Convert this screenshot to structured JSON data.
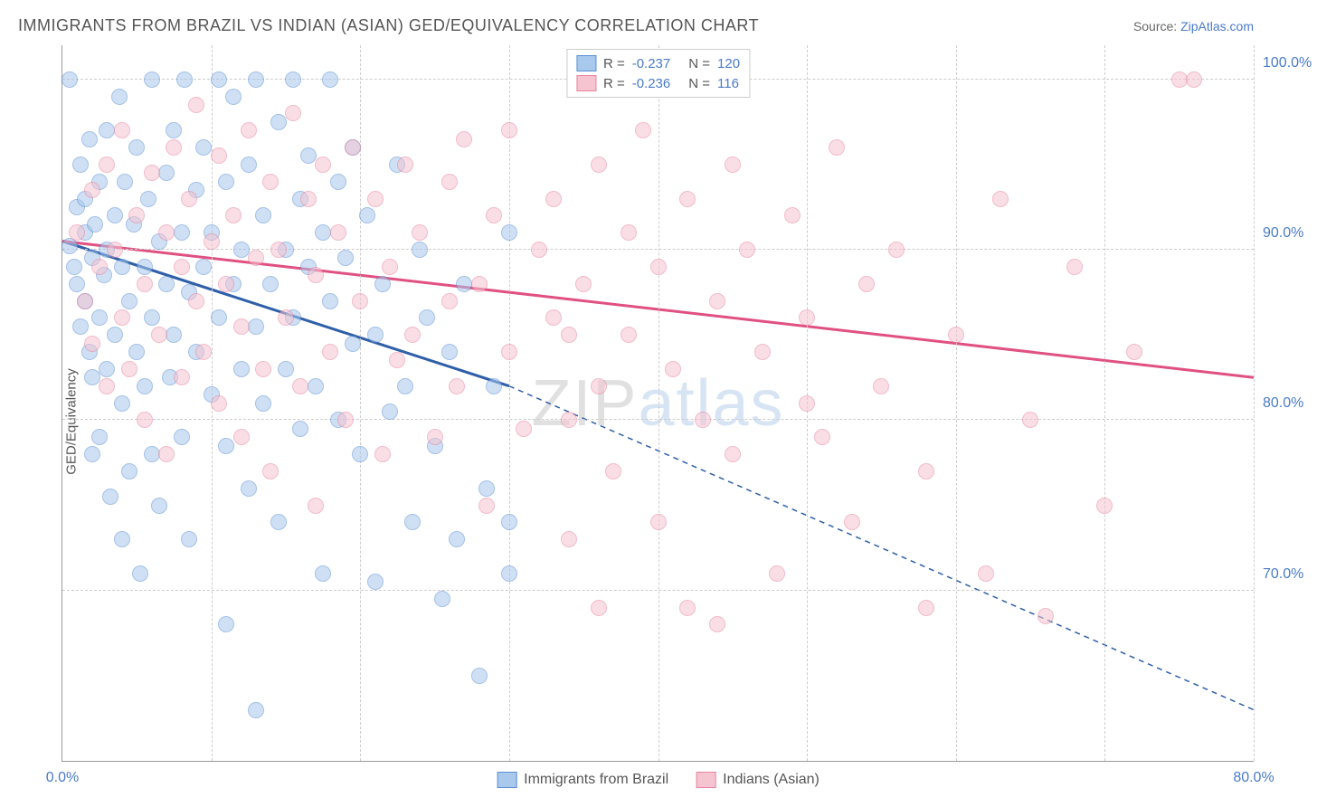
{
  "title": "IMMIGRANTS FROM BRAZIL VS INDIAN (ASIAN) GED/EQUIVALENCY CORRELATION CHART",
  "source_label": "Source:",
  "source_name": "ZipAtlas.com",
  "ylabel": "GED/Equivalency",
  "watermark_a": "ZIP",
  "watermark_b": "atlas",
  "chart": {
    "type": "scatter",
    "xlim": [
      0,
      80
    ],
    "ylim": [
      60,
      102
    ],
    "xticks": [
      0,
      10,
      20,
      30,
      40,
      50,
      60,
      70,
      80
    ],
    "xtick_labels": {
      "0": "0.0%",
      "80": "80.0%"
    },
    "yticks": [
      70,
      80,
      90,
      100
    ],
    "ytick_labels": {
      "70": "70.0%",
      "80": "80.0%",
      "90": "90.0%",
      "100": "100.0%"
    },
    "grid_color": "#cccccc",
    "background_color": "#ffffff",
    "point_radius": 9,
    "point_opacity": 0.55,
    "series": [
      {
        "name": "Immigrants from Brazil",
        "color_fill": "#a8c8ec",
        "color_stroke": "#5b8fd4",
        "line_color": "#2e5fa8",
        "R": "-0.237",
        "N": "120",
        "trend": {
          "x1": 0,
          "y1": 90.5,
          "x2_solid": 30,
          "y2_solid": 82,
          "x2_dash": 80,
          "y2_dash": 63
        },
        "points": [
          [
            0.5,
            90.2
          ],
          [
            0.5,
            100
          ],
          [
            0.8,
            89
          ],
          [
            1,
            92.5
          ],
          [
            1,
            88
          ],
          [
            1.2,
            95
          ],
          [
            1.2,
            85.5
          ],
          [
            1.5,
            93
          ],
          [
            1.5,
            87
          ],
          [
            1.5,
            91
          ],
          [
            1.8,
            84
          ],
          [
            1.8,
            96.5
          ],
          [
            2,
            89.5
          ],
          [
            2,
            78
          ],
          [
            2,
            82.5
          ],
          [
            2.2,
            91.5
          ],
          [
            2.5,
            94
          ],
          [
            2.5,
            86
          ],
          [
            2.5,
            79
          ],
          [
            2.8,
            88.5
          ],
          [
            3,
            97
          ],
          [
            3,
            83
          ],
          [
            3,
            90
          ],
          [
            3.2,
            75.5
          ],
          [
            3.5,
            92
          ],
          [
            3.5,
            85
          ],
          [
            3.8,
            99
          ],
          [
            4,
            81
          ],
          [
            4,
            89
          ],
          [
            4,
            73
          ],
          [
            4.2,
            94
          ],
          [
            4.5,
            87
          ],
          [
            4.5,
            77
          ],
          [
            4.8,
            91.5
          ],
          [
            5,
            84
          ],
          [
            5,
            96
          ],
          [
            5.2,
            71
          ],
          [
            5.5,
            89
          ],
          [
            5.5,
            82
          ],
          [
            5.8,
            93
          ],
          [
            6,
            86
          ],
          [
            6,
            100
          ],
          [
            6,
            78
          ],
          [
            6.5,
            90.5
          ],
          [
            6.5,
            75
          ],
          [
            7,
            88
          ],
          [
            7,
            94.5
          ],
          [
            7.2,
            82.5
          ],
          [
            7.5,
            97
          ],
          [
            7.5,
            85
          ],
          [
            8,
            91
          ],
          [
            8,
            79
          ],
          [
            8.2,
            100
          ],
          [
            8.5,
            87.5
          ],
          [
            8.5,
            73
          ],
          [
            9,
            93.5
          ],
          [
            9,
            84
          ],
          [
            9.5,
            89
          ],
          [
            9.5,
            96
          ],
          [
            10,
            81.5
          ],
          [
            10,
            91
          ],
          [
            10.5,
            100
          ],
          [
            10.5,
            86
          ],
          [
            11,
            78.5
          ],
          [
            11,
            94
          ],
          [
            11.5,
            88
          ],
          [
            11.5,
            99
          ],
          [
            12,
            83
          ],
          [
            12,
            90
          ],
          [
            12.5,
            76
          ],
          [
            12.5,
            95
          ],
          [
            13,
            100
          ],
          [
            13,
            85.5
          ],
          [
            13.5,
            92
          ],
          [
            13.5,
            81
          ],
          [
            14,
            88
          ],
          [
            14.5,
            97.5
          ],
          [
            14.5,
            74
          ],
          [
            15,
            90
          ],
          [
            15,
            83
          ],
          [
            15.5,
            100
          ],
          [
            15.5,
            86
          ],
          [
            16,
            93
          ],
          [
            16,
            79.5
          ],
          [
            16.5,
            89
          ],
          [
            16.5,
            95.5
          ],
          [
            17,
            82
          ],
          [
            17.5,
            91
          ],
          [
            17.5,
            71
          ],
          [
            18,
            100
          ],
          [
            18,
            87
          ],
          [
            18.5,
            94
          ],
          [
            18.5,
            80
          ],
          [
            19,
            89.5
          ],
          [
            19.5,
            96
          ],
          [
            19.5,
            84.5
          ],
          [
            20,
            78
          ],
          [
            20.5,
            92
          ],
          [
            21,
            70.5
          ],
          [
            21,
            85
          ],
          [
            21.5,
            88
          ],
          [
            22,
            80.5
          ],
          [
            22.5,
            95
          ],
          [
            23,
            82
          ],
          [
            23.5,
            74
          ],
          [
            24,
            90
          ],
          [
            24.5,
            86
          ],
          [
            25,
            78.5
          ],
          [
            25.5,
            69.5
          ],
          [
            26,
            84
          ],
          [
            26.5,
            73
          ],
          [
            27,
            88
          ],
          [
            28,
            65
          ],
          [
            28.5,
            76
          ],
          [
            29,
            82
          ],
          [
            30,
            74
          ],
          [
            30,
            71
          ],
          [
            30,
            91
          ],
          [
            13,
            63
          ],
          [
            11,
            68
          ]
        ]
      },
      {
        "name": "Indians (Asian)",
        "color_fill": "#f5c4d0",
        "color_stroke": "#e8859f",
        "line_color": "#e05080",
        "R": "-0.236",
        "N": "116",
        "trend": {
          "x1": 0,
          "y1": 90.5,
          "x2_solid": 80,
          "y2_solid": 82.5,
          "x2_dash": 80,
          "y2_dash": 82.5
        },
        "points": [
          [
            1,
            91
          ],
          [
            1.5,
            87
          ],
          [
            2,
            93.5
          ],
          [
            2,
            84.5
          ],
          [
            2.5,
            89
          ],
          [
            3,
            82
          ],
          [
            3,
            95
          ],
          [
            3.5,
            90
          ],
          [
            4,
            86
          ],
          [
            4,
            97
          ],
          [
            4.5,
            83
          ],
          [
            5,
            92
          ],
          [
            5.5,
            88
          ],
          [
            5.5,
            80
          ],
          [
            6,
            94.5
          ],
          [
            6.5,
            85
          ],
          [
            7,
            91
          ],
          [
            7,
            78
          ],
          [
            7.5,
            96
          ],
          [
            8,
            89
          ],
          [
            8,
            82.5
          ],
          [
            8.5,
            93
          ],
          [
            9,
            87
          ],
          [
            9,
            98.5
          ],
          [
            9.5,
            84
          ],
          [
            10,
            90.5
          ],
          [
            10.5,
            81
          ],
          [
            10.5,
            95.5
          ],
          [
            11,
            88
          ],
          [
            11.5,
            92
          ],
          [
            12,
            85.5
          ],
          [
            12,
            79
          ],
          [
            12.5,
            97
          ],
          [
            13,
            89.5
          ],
          [
            13.5,
            83
          ],
          [
            14,
            94
          ],
          [
            14,
            77
          ],
          [
            14.5,
            90
          ],
          [
            15,
            86
          ],
          [
            15.5,
            98
          ],
          [
            16,
            82
          ],
          [
            16.5,
            93
          ],
          [
            17,
            88.5
          ],
          [
            17,
            75
          ],
          [
            17.5,
            95
          ],
          [
            18,
            84
          ],
          [
            18.5,
            91
          ],
          [
            19,
            80
          ],
          [
            19.5,
            96
          ],
          [
            20,
            87
          ],
          [
            21,
            93
          ],
          [
            21.5,
            78
          ],
          [
            22,
            89
          ],
          [
            22.5,
            83.5
          ],
          [
            23,
            95
          ],
          [
            23.5,
            85
          ],
          [
            24,
            91
          ],
          [
            25,
            79
          ],
          [
            26,
            94
          ],
          [
            26,
            87
          ],
          [
            26.5,
            82
          ],
          [
            27,
            96.5
          ],
          [
            28,
            88
          ],
          [
            28.5,
            75
          ],
          [
            29,
            92
          ],
          [
            30,
            84
          ],
          [
            30,
            97
          ],
          [
            31,
            79.5
          ],
          [
            32,
            90
          ],
          [
            33,
            86
          ],
          [
            33,
            93
          ],
          [
            34,
            80
          ],
          [
            34,
            73
          ],
          [
            35,
            88
          ],
          [
            36,
            95
          ],
          [
            36,
            82
          ],
          [
            37,
            77
          ],
          [
            38,
            91
          ],
          [
            38,
            85
          ],
          [
            39,
            97
          ],
          [
            40,
            89
          ],
          [
            40,
            74
          ],
          [
            41,
            83
          ],
          [
            42,
            93
          ],
          [
            43,
            80
          ],
          [
            44,
            87
          ],
          [
            45,
            95
          ],
          [
            45,
            78
          ],
          [
            46,
            90
          ],
          [
            47,
            84
          ],
          [
            48,
            71
          ],
          [
            49,
            92
          ],
          [
            50,
            86
          ],
          [
            51,
            79
          ],
          [
            52,
            96
          ],
          [
            53,
            74
          ],
          [
            54,
            88
          ],
          [
            55,
            82
          ],
          [
            56,
            90
          ],
          [
            58,
            77
          ],
          [
            58,
            69
          ],
          [
            60,
            85
          ],
          [
            62,
            71
          ],
          [
            63,
            93
          ],
          [
            65,
            80
          ],
          [
            66,
            68.5
          ],
          [
            68,
            89
          ],
          [
            70,
            75
          ],
          [
            72,
            84
          ],
          [
            75,
            100
          ],
          [
            76,
            100
          ],
          [
            50,
            81
          ],
          [
            44,
            68
          ],
          [
            42,
            69
          ],
          [
            36,
            69
          ],
          [
            34,
            85
          ]
        ]
      }
    ]
  },
  "legend_bottom": [
    {
      "label": "Immigrants from Brazil",
      "fill": "#a8c8ec",
      "stroke": "#5b8fd4"
    },
    {
      "label": "Indians (Asian)",
      "fill": "#f5c4d0",
      "stroke": "#e8859f"
    }
  ]
}
